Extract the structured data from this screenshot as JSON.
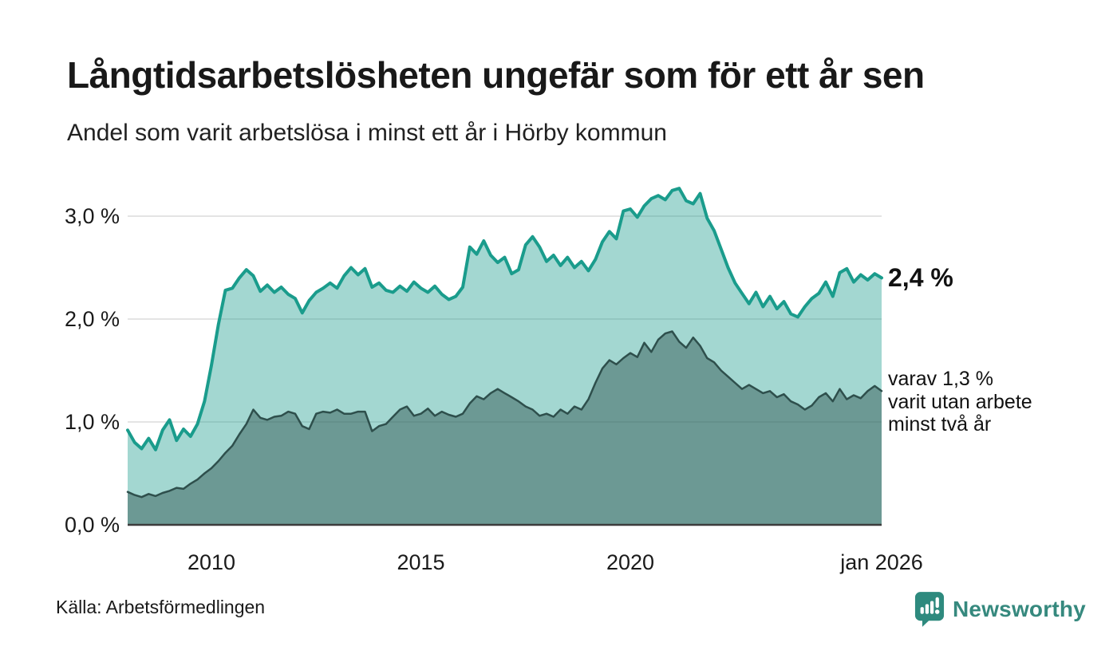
{
  "header": {
    "title": "Långtidsarbetslösheten ungefär som för ett år sen",
    "subtitle": "Andel som varit arbetslösa i minst ett år i Hörby kommun"
  },
  "annotations": {
    "total_end_label": "2,4 %",
    "two_year_end_label": "varav 1,3 %\nvarit utan arbete\nminst två år"
  },
  "footer": {
    "source": "Källa: Arbetsförmedlingen",
    "brand": "Newsworthy"
  },
  "colors": {
    "total_line": "#1a9c8c",
    "total_fill": "rgba(26,156,140,0.40)",
    "two_year_line": "#2e4f4c",
    "two_year_fill": "rgba(43,77,74,0.45)",
    "grid": "#dcdcdc",
    "axis": "#3c3c3c",
    "text": "#1a1a1a",
    "brand_teal": "#2e8a7e"
  },
  "chart_data": {
    "type": "area",
    "title": "Långtidsarbetslösheten ungefär som för ett år sen",
    "subtitle": "Andel som varit arbetslösa i minst ett år i Hörby kommun",
    "x_start_year": 2008,
    "x_end_year": 2026,
    "points_per_year": 6,
    "ylim": [
      0,
      3.35
    ],
    "grid": true,
    "legend_position": "right-annotations",
    "y_ticks": [
      {
        "label": "3,0 %",
        "value": 3
      },
      {
        "label": "2,0 %",
        "value": 2
      },
      {
        "label": "1,0 %",
        "value": 1
      },
      {
        "label": "0,0 %",
        "value": 0
      }
    ],
    "x_ticks": [
      {
        "label": "2010",
        "year": 2010
      },
      {
        "label": "2015",
        "year": 2015
      },
      {
        "label": "2020",
        "year": 2020
      },
      {
        "label": "jan 2026",
        "year": 2026
      }
    ],
    "series": [
      {
        "name": "Andel arbetslösa minst ett år",
        "end_value": 2.4,
        "end_value_label": "2,4 %",
        "values": [
          0.92,
          0.8,
          0.74,
          0.84,
          0.73,
          0.92,
          1.02,
          0.82,
          0.93,
          0.86,
          0.98,
          1.2,
          1.55,
          1.95,
          2.28,
          2.3,
          2.4,
          2.48,
          2.42,
          2.27,
          2.33,
          2.26,
          2.31,
          2.24,
          2.2,
          2.06,
          2.18,
          2.26,
          2.3,
          2.35,
          2.3,
          2.42,
          2.5,
          2.43,
          2.49,
          2.31,
          2.35,
          2.28,
          2.26,
          2.32,
          2.27,
          2.36,
          2.3,
          2.26,
          2.32,
          2.24,
          2.19,
          2.22,
          2.31,
          2.7,
          2.63,
          2.76,
          2.62,
          2.55,
          2.6,
          2.44,
          2.48,
          2.72,
          2.8,
          2.7,
          2.56,
          2.62,
          2.52,
          2.6,
          2.5,
          2.56,
          2.47,
          2.58,
          2.75,
          2.85,
          2.78,
          3.05,
          3.07,
          2.99,
          3.1,
          3.17,
          3.2,
          3.16,
          3.25,
          3.27,
          3.15,
          3.12,
          3.22,
          2.98,
          2.86,
          2.68,
          2.5,
          2.35,
          2.25,
          2.15,
          2.26,
          2.12,
          2.22,
          2.1,
          2.17,
          2.05,
          2.02,
          2.12,
          2.2,
          2.25,
          2.36,
          2.22,
          2.45,
          2.49,
          2.36,
          2.43,
          2.38,
          2.44,
          2.4
        ]
      },
      {
        "name": "varav utan arbete minst två år",
        "end_value": 1.3,
        "end_value_label": "varav 1,3 %",
        "values": [
          0.32,
          0.29,
          0.27,
          0.3,
          0.28,
          0.31,
          0.33,
          0.36,
          0.35,
          0.4,
          0.44,
          0.5,
          0.55,
          0.62,
          0.7,
          0.77,
          0.88,
          0.98,
          1.12,
          1.04,
          1.02,
          1.05,
          1.06,
          1.1,
          1.08,
          0.96,
          0.93,
          1.08,
          1.1,
          1.09,
          1.12,
          1.08,
          1.08,
          1.1,
          1.1,
          0.91,
          0.96,
          0.98,
          1.05,
          1.12,
          1.15,
          1.06,
          1.08,
          1.13,
          1.06,
          1.1,
          1.07,
          1.05,
          1.08,
          1.18,
          1.25,
          1.22,
          1.28,
          1.32,
          1.28,
          1.24,
          1.2,
          1.15,
          1.12,
          1.06,
          1.08,
          1.05,
          1.12,
          1.08,
          1.15,
          1.12,
          1.22,
          1.38,
          1.52,
          1.6,
          1.56,
          1.62,
          1.67,
          1.63,
          1.77,
          1.68,
          1.8,
          1.86,
          1.88,
          1.78,
          1.72,
          1.82,
          1.74,
          1.62,
          1.58,
          1.5,
          1.44,
          1.38,
          1.32,
          1.36,
          1.32,
          1.28,
          1.3,
          1.24,
          1.27,
          1.2,
          1.17,
          1.12,
          1.16,
          1.24,
          1.28,
          1.2,
          1.32,
          1.22,
          1.26,
          1.23,
          1.3,
          1.35,
          1.3
        ]
      }
    ]
  }
}
